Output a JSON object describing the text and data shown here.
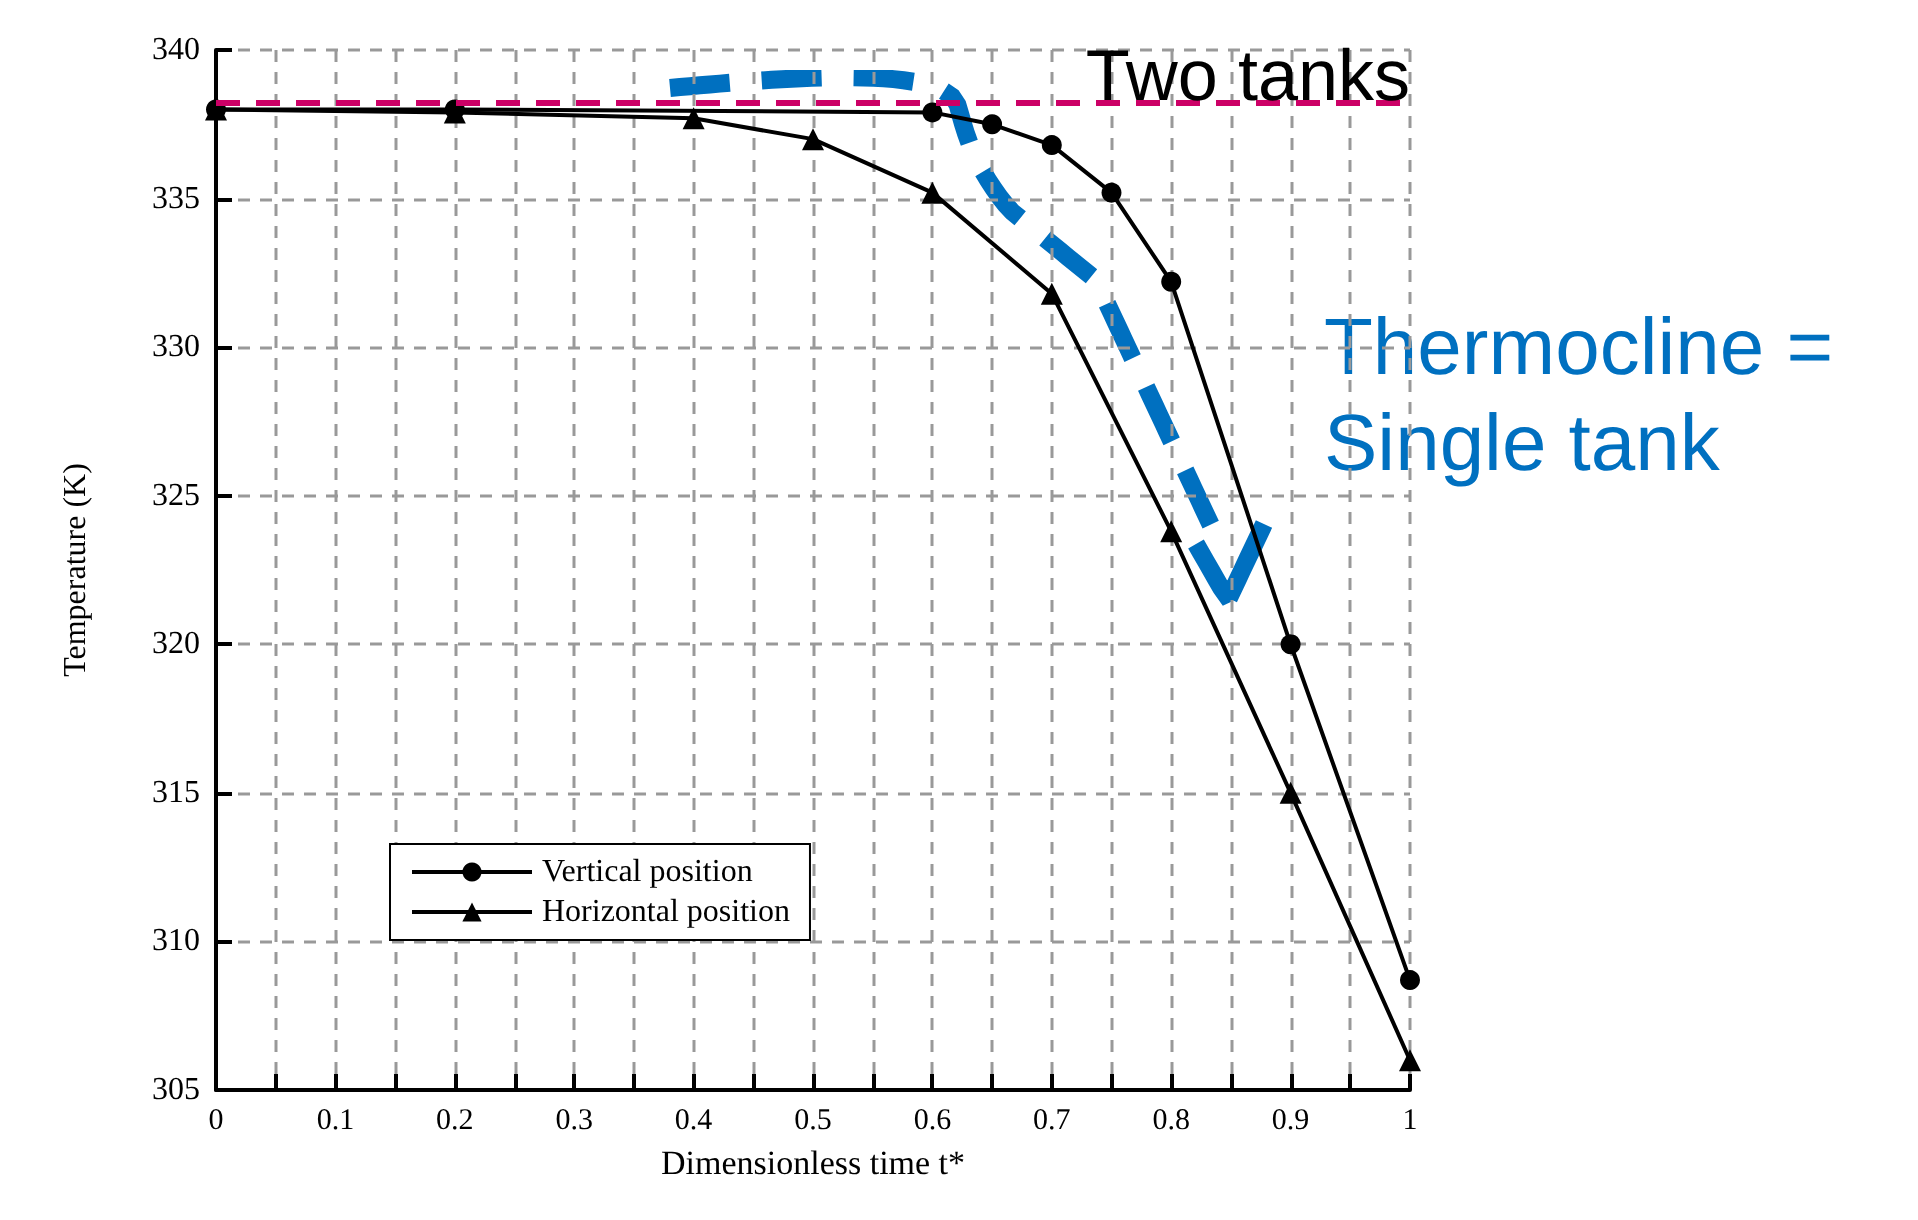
{
  "chart_data": {
    "type": "line",
    "xlabel": "Dimensionless time t*",
    "ylabel": "Temperature (K)",
    "xlim": [
      0,
      1
    ],
    "xticks": [
      0,
      0.1,
      0.2,
      0.3,
      0.4,
      0.5,
      0.6,
      0.7,
      0.8,
      0.9,
      1
    ],
    "ylim": [
      305,
      340
    ],
    "yticks": [
      305,
      310,
      315,
      320,
      325,
      330,
      335,
      340
    ],
    "grid": true,
    "legend": "bottom left",
    "line_style": "solid",
    "series": [
      {
        "name": "Vertical position",
        "color": "#000000",
        "marker": "circle",
        "x": [
          0,
          0.2,
          0.6,
          0.65,
          0.7,
          0.75,
          0.8,
          0.9,
          1
        ],
        "values": [
          338,
          338,
          337.9,
          337.5,
          336.8,
          335.2,
          332.2,
          320,
          308.7
        ]
      },
      {
        "name": "Horizontal position",
        "color": "#000000",
        "marker": "triangle",
        "x": [
          0,
          0.2,
          0.4,
          0.5,
          0.6,
          0.7,
          0.8,
          0.9,
          1
        ],
        "values": [
          338,
          337.9,
          337.7,
          337,
          335.2,
          331.8,
          323.8,
          315,
          306
        ]
      }
    ],
    "ref_lines": [
      {
        "axis": "y",
        "value": 338.2,
        "label": "Two tanks",
        "color": "#cc0066",
        "line_style": "dashed"
      }
    ],
    "annotations": [
      "Thermocline = Single tank"
    ]
  }
}
